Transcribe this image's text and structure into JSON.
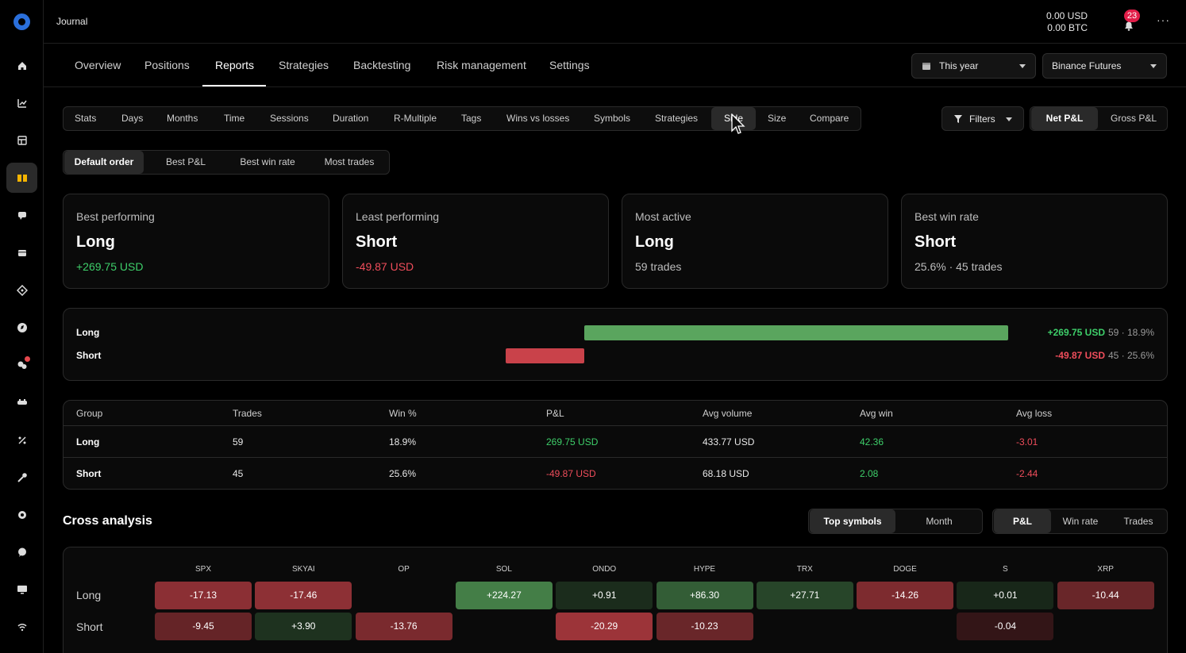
{
  "app": {
    "title": "Journal"
  },
  "balance": {
    "usd": "0.00 USD",
    "btc": "0.00 BTC"
  },
  "notifications": {
    "count": "23"
  },
  "more_label": "···",
  "sidebar": {
    "icons": [
      "home-icon",
      "chart-icon",
      "grid-icon",
      "journal-icon",
      "chat-bubble-icon",
      "wallet-icon",
      "tag-icon",
      "compass-icon",
      "community-icon",
      "controller-icon",
      "percent-icon",
      "key-icon",
      "settings-icon",
      "support-icon",
      "monitor-icon",
      "wifi-icon"
    ],
    "active_index": 3
  },
  "nav": {
    "tabs": [
      "Overview",
      "Positions",
      "Reports",
      "Strategies",
      "Backtesting",
      "Risk management",
      "Settings"
    ],
    "active": "Reports",
    "period": "This year",
    "exchange": "Binance Futures"
  },
  "subtabs": {
    "items": [
      "Stats",
      "Days",
      "Months",
      "Time",
      "Sessions",
      "Duration",
      "R-Multiple",
      "Tags",
      "Wins vs losses",
      "Symbols",
      "Strategies",
      "Side",
      "Size",
      "Compare"
    ],
    "active": "Side"
  },
  "filters_label": "Filters",
  "pnl_mode": {
    "options": [
      "Net P&L",
      "Gross P&L"
    ],
    "active": "Net P&L"
  },
  "order": {
    "options": [
      "Default order",
      "Best P&L",
      "Best win rate",
      "Most trades"
    ],
    "active": "Default order"
  },
  "cards": [
    {
      "label": "Best performing",
      "value": "Long",
      "sub": "+269.75 USD",
      "tone": "green"
    },
    {
      "label": "Least performing",
      "value": "Short",
      "sub": "-49.87 USD",
      "tone": "red"
    },
    {
      "label": "Most active",
      "value": "Long",
      "sub": "59 trades",
      "tone": "neutral"
    },
    {
      "label": "Best win rate",
      "value": "Short",
      "sub": "25.6% · 45 trades",
      "tone": "neutral"
    }
  ],
  "bars": [
    {
      "label": "Long",
      "pnl": 269.75,
      "pnl_text": "+269.75 USD",
      "meta": "59 · 18.9%",
      "color": "#5aa55e"
    },
    {
      "label": "Short",
      "pnl": -49.87,
      "pnl_text": "-49.87 USD",
      "meta": "45 · 25.6%",
      "color": "#c9424a"
    }
  ],
  "table": {
    "headers": [
      "Group",
      "Trades",
      "Win %",
      "P&L",
      "Avg volume",
      "Avg win",
      "Avg loss"
    ],
    "rows": [
      [
        "Long",
        "59",
        "18.9%",
        "269.75 USD",
        "433.77 USD",
        "42.36",
        "-3.01"
      ],
      [
        "Short",
        "45",
        "25.6%",
        "-49.87 USD",
        "68.18 USD",
        "2.08",
        "-2.44"
      ]
    ]
  },
  "cross": {
    "title": "Cross analysis",
    "group_tabs": {
      "options": [
        "Top symbols",
        "Month"
      ],
      "active": "Top symbols"
    },
    "metric_tabs": {
      "options": [
        "P&L",
        "Win rate",
        "Trades"
      ],
      "active": "P&L"
    },
    "columns": [
      "SPX",
      "SKYAI",
      "OP",
      "SOL",
      "ONDO",
      "HYPE",
      "TRX",
      "DOGE",
      "S",
      "XRP"
    ],
    "rows": [
      {
        "label": "Long",
        "values": [
          -17.13,
          -17.46,
          null,
          224.27,
          0.91,
          86.3,
          27.71,
          -14.26,
          0.01,
          -10.44
        ]
      },
      {
        "label": "Short",
        "values": [
          -9.45,
          3.9,
          -13.76,
          null,
          -20.29,
          -10.23,
          null,
          null,
          -0.04,
          null
        ]
      }
    ]
  },
  "colors": {
    "green": "#3ecf6a",
    "red": "#ef4d5b",
    "accent": "#2a6fdb",
    "badge": "#e11d48"
  }
}
